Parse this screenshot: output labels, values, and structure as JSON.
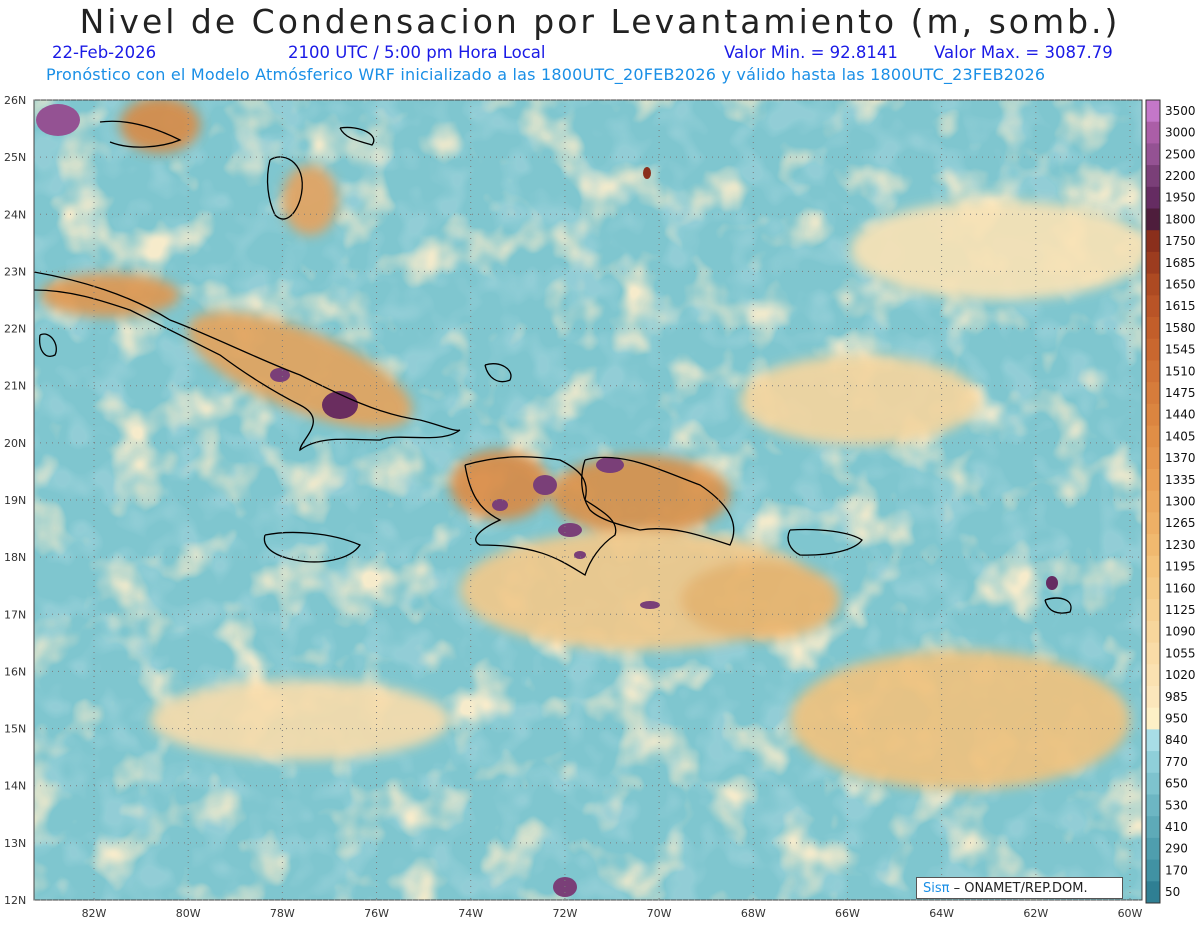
{
  "title": "Nivel de Condensacion por Levantamiento (m, somb.)",
  "date": "22-Feb-2026",
  "time": "2100 UTC / 5:00 pm Hora Local",
  "min_label": "Valor Min. = 92.8141",
  "max_label": "Valor Max. = 3087.79",
  "model_line": "Pronóstico con el Modelo Atmósferico WRF inicializado a las 1800UTC_20FEB2026 y válido hasta las  1800UTC_23FEB2026",
  "lat_ticks": [
    "26N",
    "25N",
    "24N",
    "23N",
    "22N",
    "21N",
    "20N",
    "19N",
    "18N",
    "17N",
    "16N",
    "15N",
    "14N",
    "13N",
    "12N"
  ],
  "lon_ticks": [
    "82W",
    "80W",
    "78W",
    "76W",
    "74W",
    "72W",
    "70W",
    "68W",
    "66W",
    "64W",
    "62W",
    "60W"
  ],
  "colorbar": {
    "levels": [
      "3500",
      "3000",
      "2500",
      "2200",
      "1950",
      "1800",
      "1750",
      "1685",
      "1650",
      "1615",
      "1580",
      "1545",
      "1510",
      "1475",
      "1440",
      "1405",
      "1370",
      "1335",
      "1300",
      "1265",
      "1230",
      "1195",
      "1160",
      "1125",
      "1090",
      "1055",
      "1020",
      "985",
      "950",
      "840",
      "770",
      "650",
      "530",
      "410",
      "290",
      "170",
      "50"
    ],
    "colors": [
      "#c477c9",
      "#ab5ea7",
      "#945293",
      "#7a3f78",
      "#652c62",
      "#4e1d3c",
      "#8a2f1c",
      "#9c3c1f",
      "#ad4a22",
      "#b95427",
      "#c25e2a",
      "#c9672f",
      "#d07236",
      "#d67c3b",
      "#db8540",
      "#e08e46",
      "#e4964e",
      "#e89f55",
      "#eba85e",
      "#eeb066",
      "#f0b96f",
      "#f3c27a",
      "#f4c985",
      "#f6d091",
      "#f7d69c",
      "#f9dca7",
      "#fae1b1",
      "#fbe6bb",
      "#fdf0c6",
      "#a8dde6",
      "#8fcfd9",
      "#7ec3ce",
      "#6db6c3",
      "#5eaab8",
      "#4f9eae",
      "#4192a3",
      "#2f7f93"
    ]
  },
  "credit": {
    "logo": "Sisπ",
    "text": "– ONAMET/REP.DOM."
  },
  "colors": {
    "ocean": "#7fc6cf",
    "land_outline": "#000000",
    "grid": "#7a7a7a"
  }
}
